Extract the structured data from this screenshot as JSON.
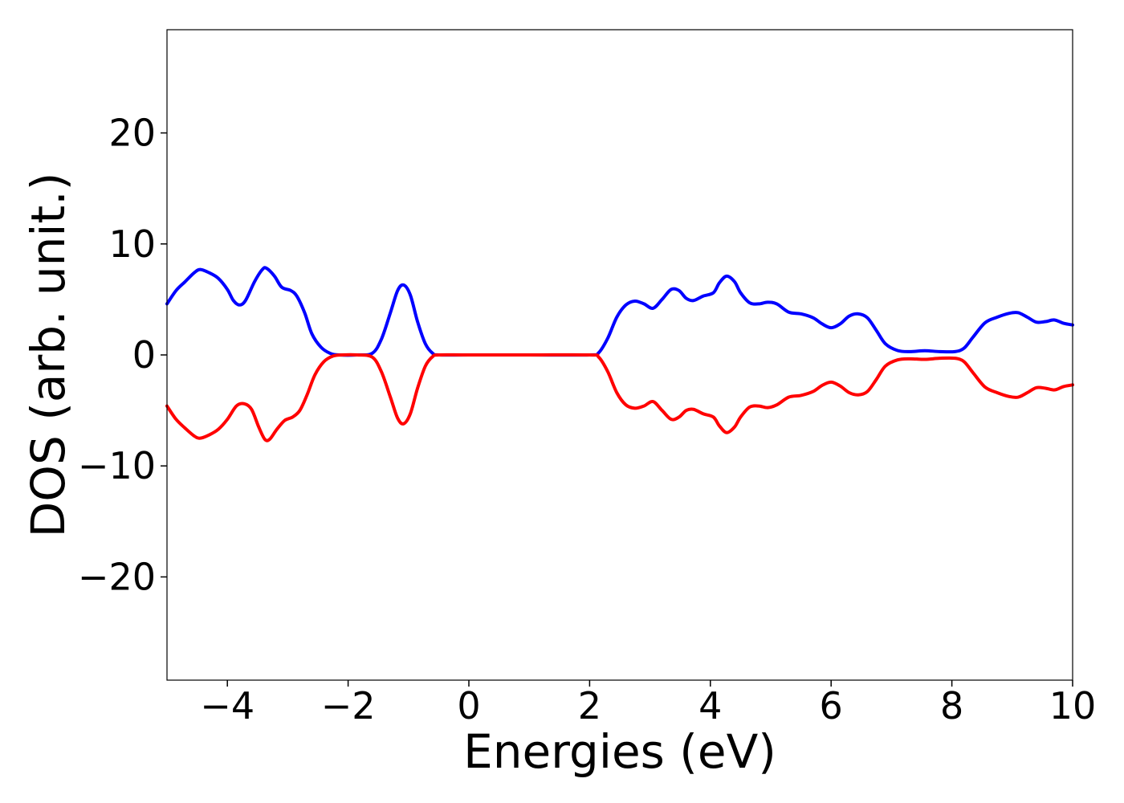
{
  "chart_data": {
    "type": "line",
    "title": "",
    "xlabel": "Energies (eV)",
    "ylabel": "DOS (arb. unit.)",
    "xlim": [
      -5,
      10
    ],
    "ylim": [
      -29.3,
      29.3
    ],
    "xticks": [
      -4,
      -2,
      0,
      2,
      4,
      6,
      8,
      10
    ],
    "xtick_labels": [
      "−4",
      "−2",
      "0",
      "2",
      "4",
      "6",
      "8",
      "10"
    ],
    "yticks": [
      -20,
      -10,
      0,
      10,
      20
    ],
    "ytick_labels": [
      "−20",
      "−10",
      "0",
      "10",
      "20"
    ],
    "grid": false,
    "legend": "none",
    "series": [
      {
        "color": "#0000ff",
        "points": [
          [
            -5.0,
            4.6
          ],
          [
            -4.85,
            5.8
          ],
          [
            -4.7,
            6.6
          ],
          [
            -4.55,
            7.4
          ],
          [
            -4.45,
            7.7
          ],
          [
            -4.3,
            7.4
          ],
          [
            -4.15,
            6.9
          ],
          [
            -4.0,
            5.9
          ],
          [
            -3.9,
            4.9
          ],
          [
            -3.8,
            4.5
          ],
          [
            -3.7,
            4.9
          ],
          [
            -3.55,
            6.6
          ],
          [
            -3.42,
            7.7
          ],
          [
            -3.35,
            7.8
          ],
          [
            -3.22,
            7.1
          ],
          [
            -3.1,
            6.1
          ],
          [
            -2.95,
            5.8
          ],
          [
            -2.85,
            5.3
          ],
          [
            -2.72,
            3.8
          ],
          [
            -2.6,
            1.9
          ],
          [
            -2.45,
            0.7
          ],
          [
            -2.3,
            0.15
          ],
          [
            -2.15,
            0.0
          ],
          [
            -1.85,
            0.0
          ],
          [
            -1.6,
            0.15
          ],
          [
            -1.45,
            1.4
          ],
          [
            -1.3,
            3.8
          ],
          [
            -1.18,
            5.8
          ],
          [
            -1.08,
            6.3
          ],
          [
            -0.97,
            5.4
          ],
          [
            -0.85,
            3.0
          ],
          [
            -0.72,
            1.0
          ],
          [
            -0.6,
            0.15
          ],
          [
            -0.5,
            0.0
          ],
          [
            0.0,
            0.0
          ],
          [
            1.0,
            0.0
          ],
          [
            2.0,
            0.0
          ],
          [
            2.15,
            0.2
          ],
          [
            2.3,
            1.5
          ],
          [
            2.45,
            3.4
          ],
          [
            2.6,
            4.5
          ],
          [
            2.75,
            4.85
          ],
          [
            2.9,
            4.6
          ],
          [
            3.05,
            4.2
          ],
          [
            3.2,
            5.0
          ],
          [
            3.35,
            5.9
          ],
          [
            3.48,
            5.8
          ],
          [
            3.6,
            5.1
          ],
          [
            3.72,
            4.9
          ],
          [
            3.88,
            5.3
          ],
          [
            4.05,
            5.6
          ],
          [
            4.15,
            6.5
          ],
          [
            4.27,
            7.1
          ],
          [
            4.4,
            6.6
          ],
          [
            4.5,
            5.6
          ],
          [
            4.65,
            4.7
          ],
          [
            4.8,
            4.6
          ],
          [
            4.95,
            4.75
          ],
          [
            5.1,
            4.6
          ],
          [
            5.3,
            3.85
          ],
          [
            5.5,
            3.7
          ],
          [
            5.7,
            3.35
          ],
          [
            5.85,
            2.8
          ],
          [
            6.0,
            2.45
          ],
          [
            6.15,
            2.8
          ],
          [
            6.3,
            3.5
          ],
          [
            6.45,
            3.7
          ],
          [
            6.6,
            3.35
          ],
          [
            6.75,
            2.2
          ],
          [
            6.9,
            1.0
          ],
          [
            7.1,
            0.4
          ],
          [
            7.3,
            0.3
          ],
          [
            7.55,
            0.38
          ],
          [
            7.8,
            0.3
          ],
          [
            8.05,
            0.3
          ],
          [
            8.2,
            0.6
          ],
          [
            8.35,
            1.6
          ],
          [
            8.55,
            2.9
          ],
          [
            8.75,
            3.4
          ],
          [
            8.95,
            3.75
          ],
          [
            9.1,
            3.8
          ],
          [
            9.25,
            3.4
          ],
          [
            9.4,
            2.95
          ],
          [
            9.55,
            3.0
          ],
          [
            9.7,
            3.15
          ],
          [
            9.85,
            2.85
          ],
          [
            10.0,
            2.7
          ]
        ]
      },
      {
        "color": "#ff0000",
        "points": [
          [
            -5.0,
            -4.6
          ],
          [
            -4.85,
            -5.8
          ],
          [
            -4.7,
            -6.6
          ],
          [
            -4.55,
            -7.3
          ],
          [
            -4.45,
            -7.5
          ],
          [
            -4.3,
            -7.2
          ],
          [
            -4.15,
            -6.7
          ],
          [
            -4.0,
            -5.8
          ],
          [
            -3.85,
            -4.6
          ],
          [
            -3.72,
            -4.4
          ],
          [
            -3.6,
            -4.9
          ],
          [
            -3.48,
            -6.5
          ],
          [
            -3.38,
            -7.6
          ],
          [
            -3.3,
            -7.6
          ],
          [
            -3.18,
            -6.7
          ],
          [
            -3.05,
            -5.9
          ],
          [
            -2.92,
            -5.6
          ],
          [
            -2.8,
            -5.0
          ],
          [
            -2.68,
            -3.6
          ],
          [
            -2.55,
            -1.8
          ],
          [
            -2.4,
            -0.6
          ],
          [
            -2.25,
            -0.1
          ],
          [
            -2.1,
            0.0
          ],
          [
            -1.85,
            0.0
          ],
          [
            -1.6,
            -0.2
          ],
          [
            -1.45,
            -1.5
          ],
          [
            -1.3,
            -3.8
          ],
          [
            -1.18,
            -5.7
          ],
          [
            -1.08,
            -6.2
          ],
          [
            -0.97,
            -5.3
          ],
          [
            -0.85,
            -3.0
          ],
          [
            -0.72,
            -1.0
          ],
          [
            -0.6,
            -0.15
          ],
          [
            -0.5,
            0.0
          ],
          [
            0.0,
            0.0
          ],
          [
            1.0,
            0.0
          ],
          [
            2.0,
            0.0
          ],
          [
            2.15,
            -0.2
          ],
          [
            2.3,
            -1.5
          ],
          [
            2.45,
            -3.4
          ],
          [
            2.6,
            -4.5
          ],
          [
            2.75,
            -4.8
          ],
          [
            2.9,
            -4.6
          ],
          [
            3.05,
            -4.2
          ],
          [
            3.2,
            -5.0
          ],
          [
            3.35,
            -5.8
          ],
          [
            3.48,
            -5.6
          ],
          [
            3.6,
            -5.0
          ],
          [
            3.72,
            -4.9
          ],
          [
            3.88,
            -5.3
          ],
          [
            4.05,
            -5.6
          ],
          [
            4.15,
            -6.4
          ],
          [
            4.27,
            -7.0
          ],
          [
            4.4,
            -6.5
          ],
          [
            4.5,
            -5.6
          ],
          [
            4.65,
            -4.7
          ],
          [
            4.8,
            -4.6
          ],
          [
            4.95,
            -4.75
          ],
          [
            5.1,
            -4.5
          ],
          [
            5.3,
            -3.8
          ],
          [
            5.5,
            -3.65
          ],
          [
            5.7,
            -3.3
          ],
          [
            5.85,
            -2.75
          ],
          [
            6.0,
            -2.45
          ],
          [
            6.15,
            -2.8
          ],
          [
            6.3,
            -3.4
          ],
          [
            6.45,
            -3.6
          ],
          [
            6.6,
            -3.3
          ],
          [
            6.75,
            -2.2
          ],
          [
            6.9,
            -1.0
          ],
          [
            7.1,
            -0.45
          ],
          [
            7.3,
            -0.35
          ],
          [
            7.55,
            -0.4
          ],
          [
            7.8,
            -0.3
          ],
          [
            8.05,
            -0.3
          ],
          [
            8.2,
            -0.6
          ],
          [
            8.35,
            -1.6
          ],
          [
            8.55,
            -2.9
          ],
          [
            8.75,
            -3.4
          ],
          [
            8.95,
            -3.75
          ],
          [
            9.1,
            -3.8
          ],
          [
            9.25,
            -3.4
          ],
          [
            9.4,
            -2.95
          ],
          [
            9.55,
            -3.0
          ],
          [
            9.7,
            -3.15
          ],
          [
            9.85,
            -2.85
          ],
          [
            10.0,
            -2.7
          ]
        ]
      }
    ]
  }
}
